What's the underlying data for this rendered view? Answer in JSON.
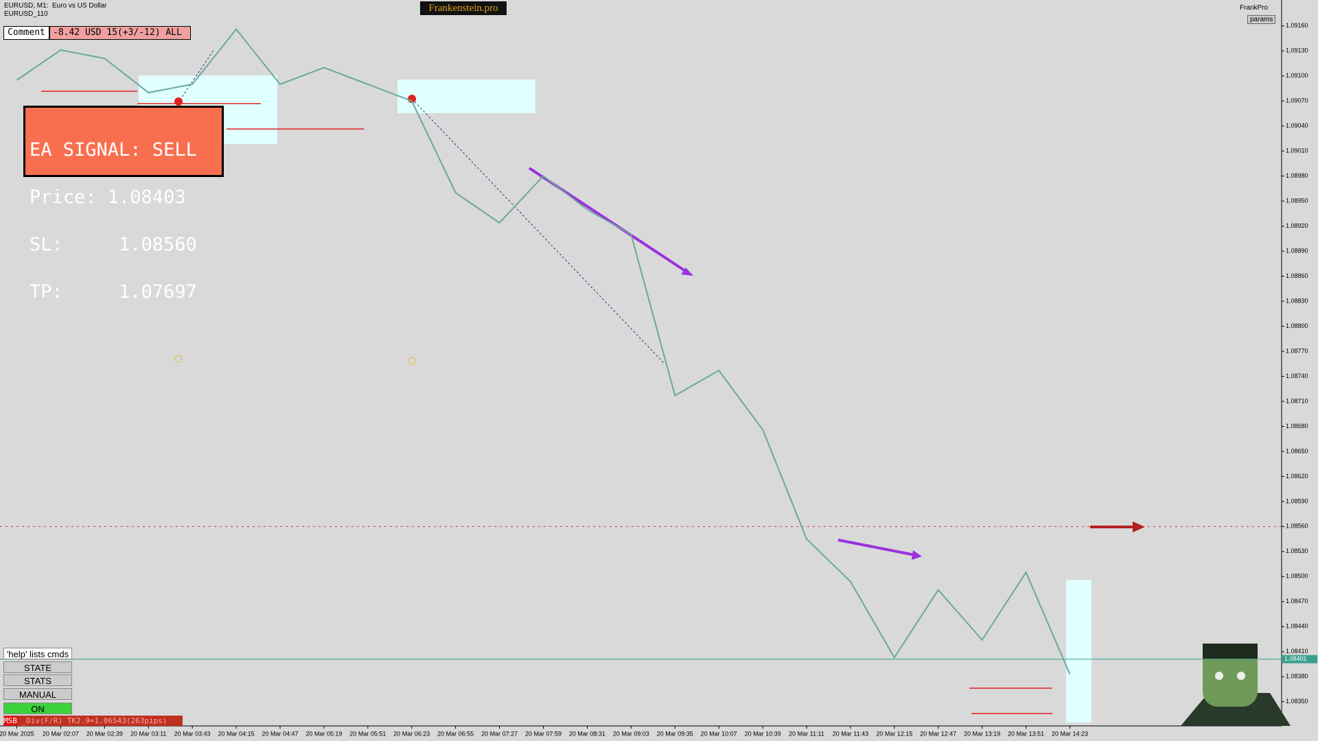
{
  "chart_data": {
    "type": "line",
    "categories": [
      "20 Mar 2025",
      "20 Mar 02:07",
      "20 Mar 02:39",
      "20 Mar 03:11",
      "20 Mar 03:43",
      "20 Mar 04:15",
      "20 Mar 04:47",
      "20 Mar 05:19",
      "20 Mar 05:51",
      "20 Mar 06:23",
      "20 Mar 06:55",
      "20 Mar 07:27",
      "20 Mar 07:59",
      "20 Mar 08:31",
      "20 Mar 09:03",
      "20 Mar 09:35",
      "20 Mar 10:07",
      "20 Mar 10:39",
      "20 Mar 11:11",
      "20 Mar 11:43",
      "20 Mar 12:15",
      "20 Mar 12:47",
      "20 Mar 13:19",
      "20 Mar 13:51",
      "20 Mar 14:23"
    ],
    "series": [
      {
        "name": "EURUSD",
        "color": "#6aa89a",
        "values": [
          1.09095,
          1.09131,
          1.09121,
          1.0908,
          1.0909,
          1.09156,
          1.0909,
          1.0911,
          1.0909,
          1.0907,
          1.0896,
          1.08924,
          1.0898,
          1.0894,
          1.0891,
          1.08717,
          1.08747,
          1.08676,
          1.08545,
          1.08494,
          1.08403,
          1.08484,
          1.08424,
          1.08505,
          1.08383
        ]
      }
    ],
    "ylim": [
      1.08321,
      1.09189
    ],
    "yticks": [
      {
        "value": 1.0835,
        "label": "1.08350"
      },
      {
        "value": 1.0838,
        "label": "1.08380"
      },
      {
        "value": 1.0841,
        "label": "1.08410"
      },
      {
        "value": 1.0844,
        "label": "1.08440"
      },
      {
        "value": 1.0847,
        "label": "1.08470"
      },
      {
        "value": 1.085,
        "label": "1.08500"
      },
      {
        "value": 1.0853,
        "label": "1.08530"
      },
      {
        "value": 1.0856,
        "label": "1.08560"
      },
      {
        "value": 1.0859,
        "label": "1.08590"
      },
      {
        "value": 1.0862,
        "label": "1.08620"
      },
      {
        "value": 1.0865,
        "label": "1.08650"
      },
      {
        "value": 1.0868,
        "label": "1.08680"
      },
      {
        "value": 1.0871,
        "label": "1.08710"
      },
      {
        "value": 1.0874,
        "label": "1.08740"
      },
      {
        "value": 1.0877,
        "label": "1.08770"
      },
      {
        "value": 1.088,
        "label": "1.08800"
      },
      {
        "value": 1.0883,
        "label": "1.08830"
      },
      {
        "value": 1.0886,
        "label": "1.08860"
      },
      {
        "value": 1.0889,
        "label": "1.08890"
      },
      {
        "value": 1.0892,
        "label": "1.08920"
      },
      {
        "value": 1.0895,
        "label": "1.08950"
      },
      {
        "value": 1.0898,
        "label": "1.08980"
      },
      {
        "value": 1.0901,
        "label": "1.09010"
      },
      {
        "value": 1.0904,
        "label": "1.09040"
      },
      {
        "value": 1.0907,
        "label": "1.09070"
      },
      {
        "value": 1.091,
        "label": "1.09100"
      },
      {
        "value": 1.0913,
        "label": "1.09130"
      },
      {
        "value": 1.0916,
        "label": "1.09160"
      }
    ],
    "grid": false,
    "current_price": 1.08401,
    "level_line": 1.0856
  },
  "ui": {
    "symbol": "EURUSD, M1:  Euro vs US Dollar",
    "indicator": "EURUSD_110",
    "brand": "Frankenstein.pro",
    "account": "FrankPro",
    "params": "params",
    "comment_label": "Comment",
    "comment_value": "-8.42 USD 15(+3/-12) ALL",
    "signal": [
      "EA SIGNAL: SELL",
      "Price: 1.08403",
      "SL:     1.08560",
      "TP:     1.07697"
    ],
    "help": "'help' lists cmds",
    "buttons": [
      "STATE",
      "STATS",
      "MANUAL",
      "ON"
    ],
    "status_tag": "MSB",
    "status_text": " _Div(F/R) TK2.9=1.06543(263pips)"
  }
}
